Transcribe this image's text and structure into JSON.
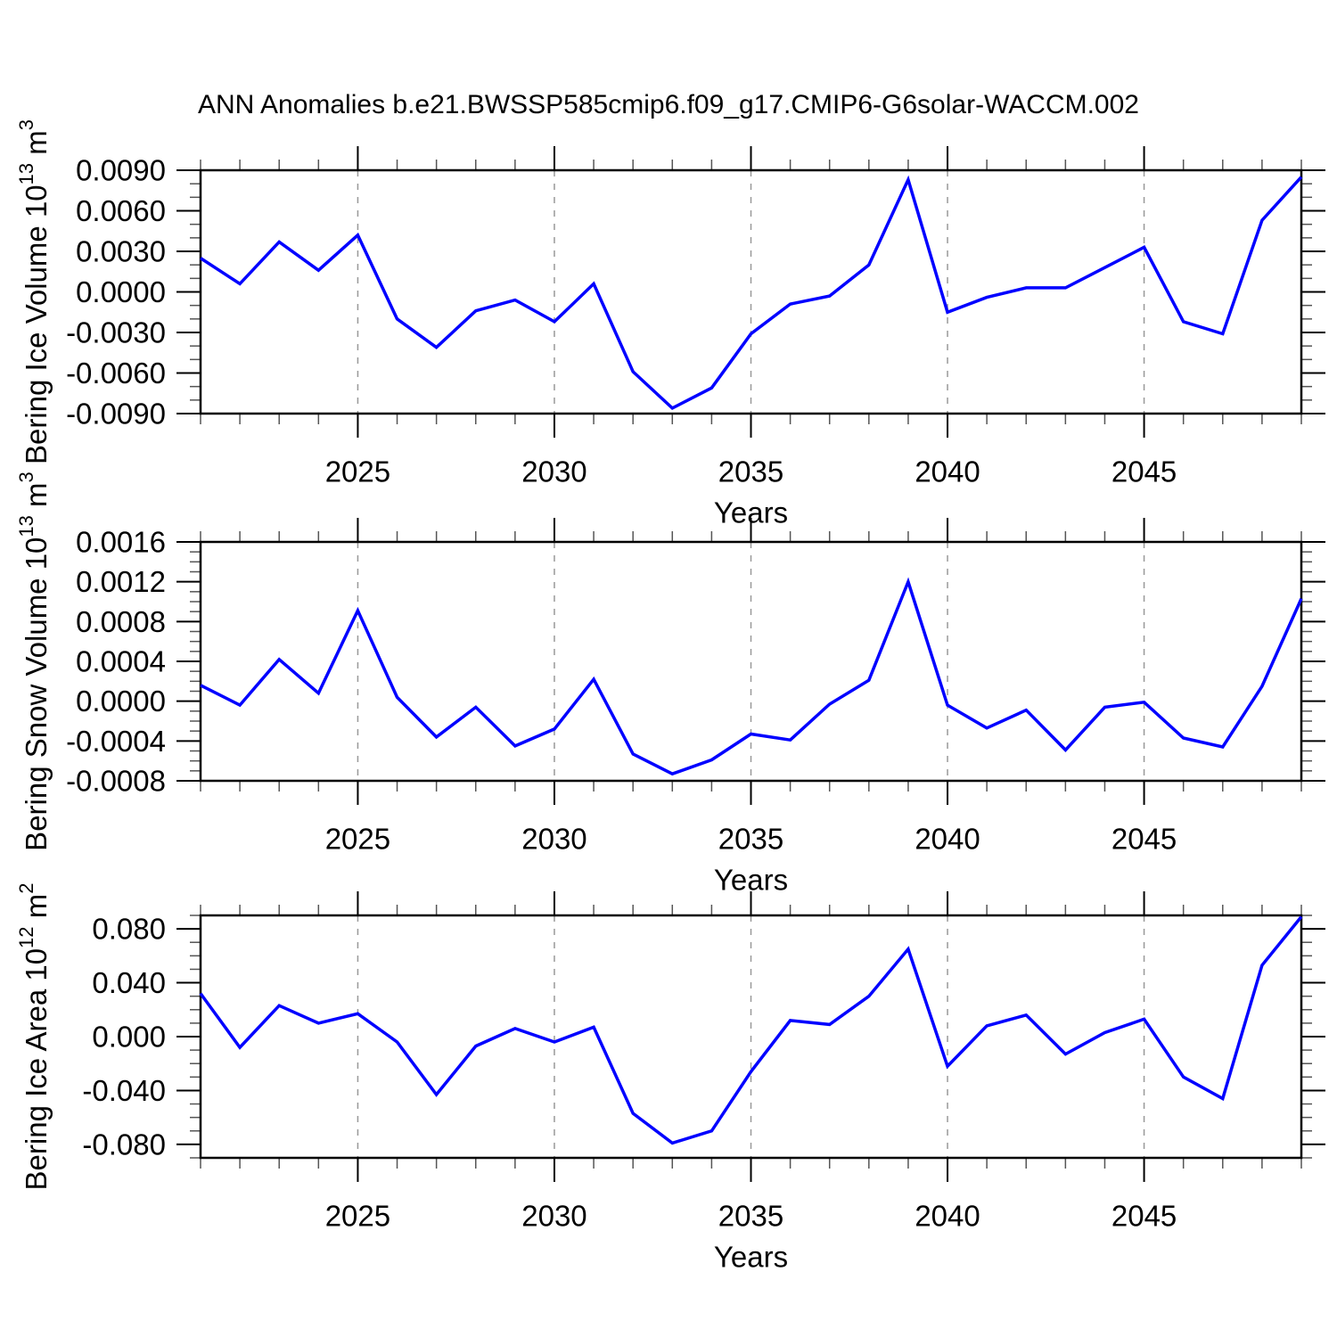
{
  "title": "ANN Anomalies b.e21.BWSSP585cmip6.f09_g17.CMIP6-G6solar-WACCM.002",
  "style": {
    "line_color": "#0000ff",
    "grid_color": "#999999",
    "axis_color": "#000000",
    "minor_tick_color": "#555555",
    "background": "#ffffff"
  },
  "chart_data": [
    {
      "type": "line",
      "name": "bering-ice-volume",
      "ylabel": "Bering Ice Volume 10^13 m^3",
      "ylabel_sup": "Bering Ice Volume 10^13^ m^3^",
      "xlabel": "Years",
      "x": [
        2021,
        2022,
        2023,
        2024,
        2025,
        2026,
        2027,
        2028,
        2029,
        2030,
        2031,
        2032,
        2033,
        2034,
        2035,
        2036,
        2037,
        2038,
        2039,
        2040,
        2041,
        2042,
        2043,
        2044,
        2045,
        2046,
        2047,
        2048,
        2049
      ],
      "values": [
        0.0025,
        0.0006,
        0.0037,
        0.0016,
        0.0042,
        -0.002,
        -0.0041,
        -0.0014,
        -0.0006,
        -0.0022,
        0.0006,
        -0.0059,
        -0.0086,
        -0.0071,
        -0.0031,
        -0.0009,
        -0.0003,
        0.002,
        0.0083,
        -0.0015,
        -0.0004,
        0.0003,
        0.0003,
        0.0018,
        0.0033,
        -0.0022,
        -0.0031,
        0.0053,
        0.0085
      ],
      "ylim": [
        -0.009,
        0.009
      ],
      "ytick_major": 0.003,
      "ytick_minor": 0.001,
      "ytick_decimals": 4,
      "xlim": [
        2021,
        2049
      ],
      "xtick_major": [
        2025,
        2030,
        2035,
        2040,
        2045
      ],
      "xtick_minor_step": 1,
      "grid_vertical_dashed": true,
      "legend": "none"
    },
    {
      "type": "line",
      "name": "bering-snow-volume",
      "ylabel": "Bering Snow Volume 10^13 m^3",
      "ylabel_sup": "Bering Snow Volume 10^13^ m^3^",
      "xlabel": "Years",
      "x": [
        2021,
        2022,
        2023,
        2024,
        2025,
        2026,
        2027,
        2028,
        2029,
        2030,
        2031,
        2032,
        2033,
        2034,
        2035,
        2036,
        2037,
        2038,
        2039,
        2040,
        2041,
        2042,
        2043,
        2044,
        2045,
        2046,
        2047,
        2048,
        2049
      ],
      "values": [
        0.00016,
        -4e-05,
        0.00042,
        8e-05,
        0.00091,
        4e-05,
        -0.00036,
        -6e-05,
        -0.00045,
        -0.00028,
        0.00022,
        -0.00053,
        -0.00073,
        -0.00059,
        -0.00033,
        -0.00039,
        -3e-05,
        0.00021,
        0.0012,
        -4e-05,
        -0.00027,
        -9e-05,
        -0.00049,
        -6e-05,
        -1e-05,
        -0.00037,
        -0.00046,
        0.00015,
        0.00103
      ],
      "ylim": [
        -0.0008,
        0.0016
      ],
      "ytick_major": 0.0004,
      "ytick_minor": 0.0001,
      "ytick_decimals": 4,
      "xlim": [
        2021,
        2049
      ],
      "xtick_major": [
        2025,
        2030,
        2035,
        2040,
        2045
      ],
      "xtick_minor_step": 1,
      "grid_vertical_dashed": true,
      "legend": "none"
    },
    {
      "type": "line",
      "name": "bering-ice-area",
      "ylabel": "Bering Ice Area 10^12 m^2",
      "ylabel_sup": "Bering Ice Area 10^12^ m^2^",
      "xlabel": "Years",
      "x": [
        2021,
        2022,
        2023,
        2024,
        2025,
        2026,
        2027,
        2028,
        2029,
        2030,
        2031,
        2032,
        2033,
        2034,
        2035,
        2036,
        2037,
        2038,
        2039,
        2040,
        2041,
        2042,
        2043,
        2044,
        2045,
        2046,
        2047,
        2048,
        2049
      ],
      "values": [
        0.032,
        -0.008,
        0.023,
        0.01,
        0.017,
        -0.004,
        -0.043,
        -0.007,
        0.006,
        -0.004,
        0.007,
        -0.057,
        -0.079,
        -0.07,
        -0.026,
        0.012,
        0.009,
        0.03,
        0.065,
        -0.022,
        0.008,
        0.016,
        -0.013,
        0.003,
        0.013,
        -0.03,
        -0.046,
        0.053,
        0.089
      ],
      "ylim": [
        -0.09,
        0.09
      ],
      "ytick_major": 0.04,
      "ytick_minor": 0.01,
      "ytick_decimals": 3,
      "xlim": [
        2021,
        2049
      ],
      "xtick_major": [
        2025,
        2030,
        2035,
        2040,
        2045
      ],
      "xtick_minor_step": 1,
      "grid_vertical_dashed": true,
      "legend": "none"
    }
  ]
}
